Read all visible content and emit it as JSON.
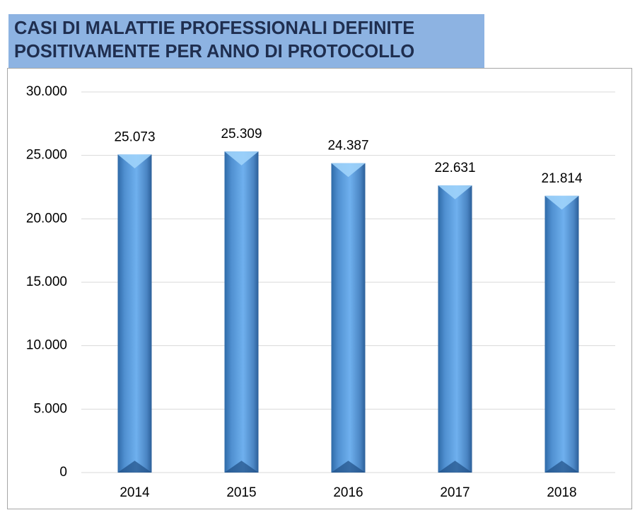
{
  "chart_data": {
    "type": "bar",
    "title": [
      "CASI DI MALATTIE PROFESSIONALI DEFINITE",
      "POSITIVAMENTE PER ANNO DI PROTOCOLLO"
    ],
    "categories": [
      "2014",
      "2015",
      "2016",
      "2017",
      "2018"
    ],
    "values": [
      25073,
      25309,
      24387,
      22631,
      21814
    ],
    "value_labels": [
      "25.073",
      "25.309",
      "24.387",
      "22.631",
      "21.814"
    ],
    "color": "#5b9bd5",
    "ylim": [
      0,
      30000
    ],
    "yticks": [
      0,
      {
        "value": 5000,
        "label": "5.000"
      },
      {
        "value": 10000,
        "label": "10.000"
      },
      {
        "value": 15000,
        "label": "15.000"
      },
      {
        "value": 20000,
        "label": "20.000"
      },
      {
        "value": 25000,
        "label": "25.000"
      },
      {
        "value": 30000,
        "label": "30.000"
      }
    ],
    "grid": true
  }
}
